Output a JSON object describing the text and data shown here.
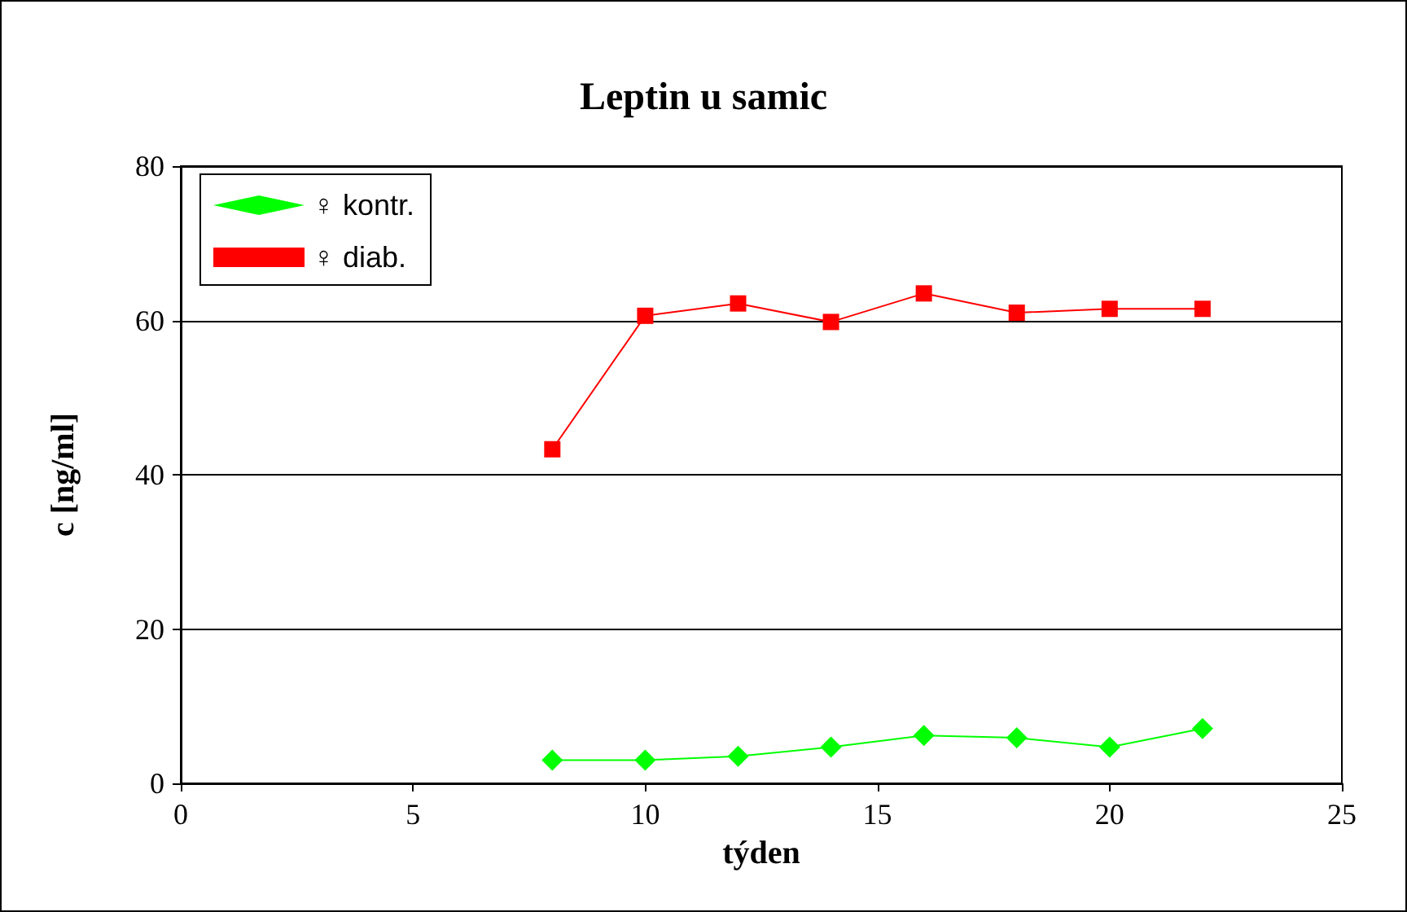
{
  "chart_data": {
    "type": "line",
    "title": "Leptin u samic",
    "xlabel": "týden",
    "ylabel": "c [ng/ml]",
    "x": [
      8,
      10,
      12,
      14,
      16,
      18,
      20,
      22
    ],
    "series": [
      {
        "name": "♀ kontr.",
        "color": "#00ff00",
        "marker": "diamond",
        "values": [
          3.0,
          3.0,
          3.5,
          4.7,
          6.2,
          5.9,
          4.7,
          7.1
        ]
      },
      {
        "name": "♀ diab.",
        "color": "#ff0000",
        "marker": "square",
        "values": [
          43.3,
          60.6,
          62.2,
          59.8,
          63.5,
          61.0,
          61.5,
          61.5
        ]
      }
    ],
    "xlim": [
      0,
      25
    ],
    "xticks": [
      0,
      5,
      10,
      15,
      20,
      25
    ],
    "ylim": [
      0,
      80
    ],
    "yticks": [
      0,
      20,
      40,
      60,
      80
    ],
    "grid": "y",
    "legend": "top left",
    "line_style": "solid"
  }
}
